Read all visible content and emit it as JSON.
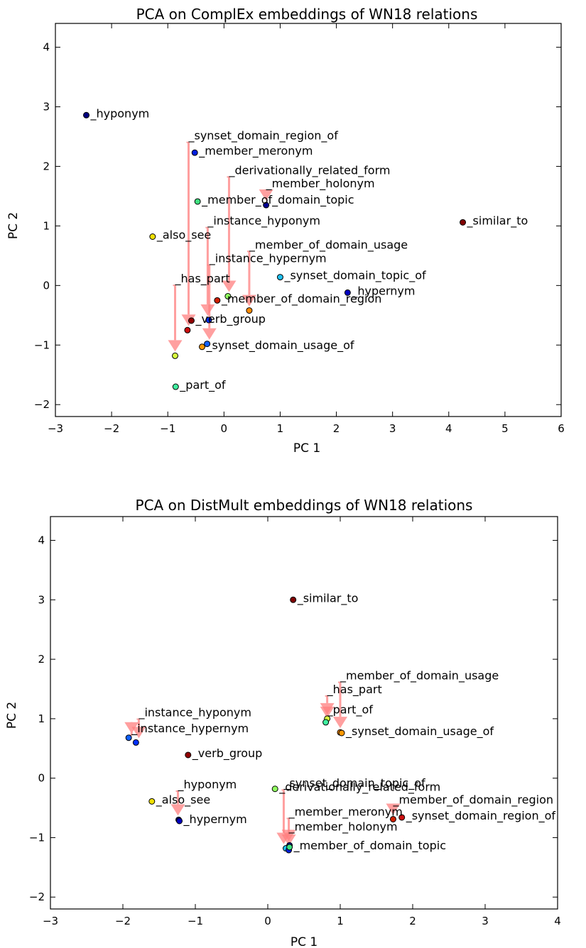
{
  "chart_data": [
    {
      "type": "scatter",
      "title": "PCA on ComplEx embeddings of WN18 relations",
      "xlabel": "PC 1",
      "ylabel": "PC 2",
      "xlim": [
        -3,
        6
      ],
      "ylim": [
        -2.2,
        4.4
      ],
      "xticks": [
        -3,
        -2,
        -1,
        0,
        1,
        2,
        3,
        4,
        5,
        6
      ],
      "yticks": [
        -2,
        -1,
        0,
        1,
        2,
        3,
        4
      ],
      "xtick_labels": [
        "−3",
        "−2",
        "−1",
        "0",
        "1",
        "2",
        "3",
        "4",
        "5",
        "6"
      ],
      "ytick_labels": [
        "−2",
        "−1",
        "0",
        "1",
        "2",
        "3",
        "4"
      ],
      "grid": false,
      "points": [
        {
          "label": "hyponym",
          "x": -2.45,
          "y": 2.86,
          "color": "#00007f"
        },
        {
          "label": "synset_domain_region_of",
          "x": -0.65,
          "y": -0.75,
          "color": "#cc1010",
          "label_x": -0.63,
          "label_y": 2.45
        },
        {
          "label": "member_meronym",
          "x": -0.52,
          "y": 2.23,
          "color": "#0020e0"
        },
        {
          "label": "derivationally_related_form",
          "x": 0.07,
          "y": -0.18,
          "color": "#90ff60",
          "label_x": 0.09,
          "label_y": 1.87
        },
        {
          "label": "member_holonym",
          "x": 0.75,
          "y": 1.35,
          "color": "#000090",
          "label_x": 0.75,
          "label_y": 1.65
        },
        {
          "label": "member_of_domain_topic",
          "x": -0.47,
          "y": 1.41,
          "color": "#40e080"
        },
        {
          "label": "similar_to",
          "x": 4.25,
          "y": 1.06,
          "color": "#800000"
        },
        {
          "label": "instance_hyponym",
          "x": -0.27,
          "y": -0.58,
          "color": "#0030ff",
          "label_x": -0.29,
          "label_y": 1.02
        },
        {
          "label": "also_see",
          "x": -1.27,
          "y": 0.82,
          "color": "#f0e000"
        },
        {
          "label": "member_of_domain_usage",
          "x": 0.45,
          "y": -0.42,
          "color": "#ff8c00",
          "label_x": 0.45,
          "label_y": 0.62
        },
        {
          "label": "instance_hypernym",
          "x": -0.3,
          "y": -0.98,
          "color": "#1060ff",
          "label_x": -0.26,
          "label_y": 0.39
        },
        {
          "label": "synset_domain_topic_of",
          "x": 1.0,
          "y": 0.14,
          "color": "#20c0f0"
        },
        {
          "label": "has_part",
          "x": -0.87,
          "y": -1.18,
          "color": "#d8ff40",
          "label_x": -0.87,
          "label_y": 0.05
        },
        {
          "label": "hypernym",
          "x": 2.2,
          "y": -0.12,
          "color": "#0000c0"
        },
        {
          "label": "member_of_domain_region",
          "x": -0.12,
          "y": -0.25,
          "color": "#d02000"
        },
        {
          "label": "verb_group",
          "x": -0.58,
          "y": -0.59,
          "color": "#900000"
        },
        {
          "label": "synset_domain_usage_of",
          "x": -0.39,
          "y": -1.03,
          "color": "#ff9900"
        },
        {
          "label": "part_of",
          "x": -0.86,
          "y": -1.7,
          "color": "#40f0a0"
        }
      ]
    },
    {
      "type": "scatter",
      "title": "PCA on DistMult embeddings of WN18 relations",
      "xlabel": "PC 1",
      "ylabel": "PC 2",
      "xlim": [
        -3,
        4
      ],
      "ylim": [
        -2.2,
        4.4
      ],
      "xticks": [
        -3,
        -2,
        -1,
        0,
        1,
        2,
        3,
        4
      ],
      "yticks": [
        -2,
        -1,
        0,
        1,
        2,
        3,
        4
      ],
      "xtick_labels": [
        "−3",
        "−2",
        "−1",
        "0",
        "1",
        "2",
        "3",
        "4"
      ],
      "ytick_labels": [
        "−2",
        "−1",
        "0",
        "1",
        "2",
        "3",
        "4"
      ],
      "grid": false,
      "points": [
        {
          "label": "similar_to",
          "x": 0.35,
          "y": 3.0,
          "color": "#800000"
        },
        {
          "label": "member_of_domain_usage",
          "x": 1.0,
          "y": 0.77,
          "color": "#ff8c00",
          "label_x": 1.0,
          "label_y": 1.66
        },
        {
          "label": "has_part",
          "x": 0.82,
          "y": 1.0,
          "color": "#d8ff40",
          "label_x": 0.82,
          "label_y": 1.43
        },
        {
          "label": "part_of",
          "x": 0.8,
          "y": 0.94,
          "color": "#40f0a0",
          "label_x": 0.82,
          "label_y": 1.09
        },
        {
          "label": "synset_domain_usage_of",
          "x": 1.02,
          "y": 0.76,
          "color": "#ff9900"
        },
        {
          "label": "instance_hyponym",
          "x": -1.82,
          "y": 0.6,
          "color": "#0030ff",
          "label_x": -1.78,
          "label_y": 1.04
        },
        {
          "label": "instance_hypernym",
          "x": -1.92,
          "y": 0.68,
          "color": "#1060ff",
          "label_x": -1.88,
          "label_y": 0.77
        },
        {
          "label": "verb_group",
          "x": -1.1,
          "y": 0.39,
          "color": "#900000"
        },
        {
          "label": "synset_domain_topic_of",
          "x": 0.25,
          "y": -1.18,
          "color": "#20c0f0",
          "label_x": 0.22,
          "label_y": -0.15
        },
        {
          "label": "derivationally_related_form",
          "x": 0.1,
          "y": -0.18,
          "color": "#90ff60"
        },
        {
          "label": "hyponym",
          "x": -1.23,
          "y": -0.7,
          "color": "#00007f",
          "label_x": -1.24,
          "label_y": -0.17
        },
        {
          "label": "also_see",
          "x": -1.6,
          "y": -0.39,
          "color": "#f0e000"
        },
        {
          "label": "hypernym",
          "x": -1.22,
          "y": -0.72,
          "color": "#0000c0"
        },
        {
          "label": "member_of_domain_region",
          "x": 1.73,
          "y": -0.69,
          "color": "#d02000",
          "label_x": 1.73,
          "label_y": -0.43
        },
        {
          "label": "synset_domain_region_of",
          "x": 1.85,
          "y": -0.66,
          "color": "#cc1010"
        },
        {
          "label": "member_meronym",
          "x": 0.29,
          "y": -1.21,
          "color": "#0020e0",
          "label_x": 0.29,
          "label_y": -0.63
        },
        {
          "label": "member_holonym",
          "x": 0.3,
          "y": -1.13,
          "color": "#000090",
          "label_x": 0.29,
          "label_y": -0.88
        },
        {
          "label": "member_of_domain_topic",
          "x": 0.3,
          "y": -1.16,
          "color": "#40e080"
        }
      ]
    }
  ],
  "arrow_color": "#ff8080"
}
